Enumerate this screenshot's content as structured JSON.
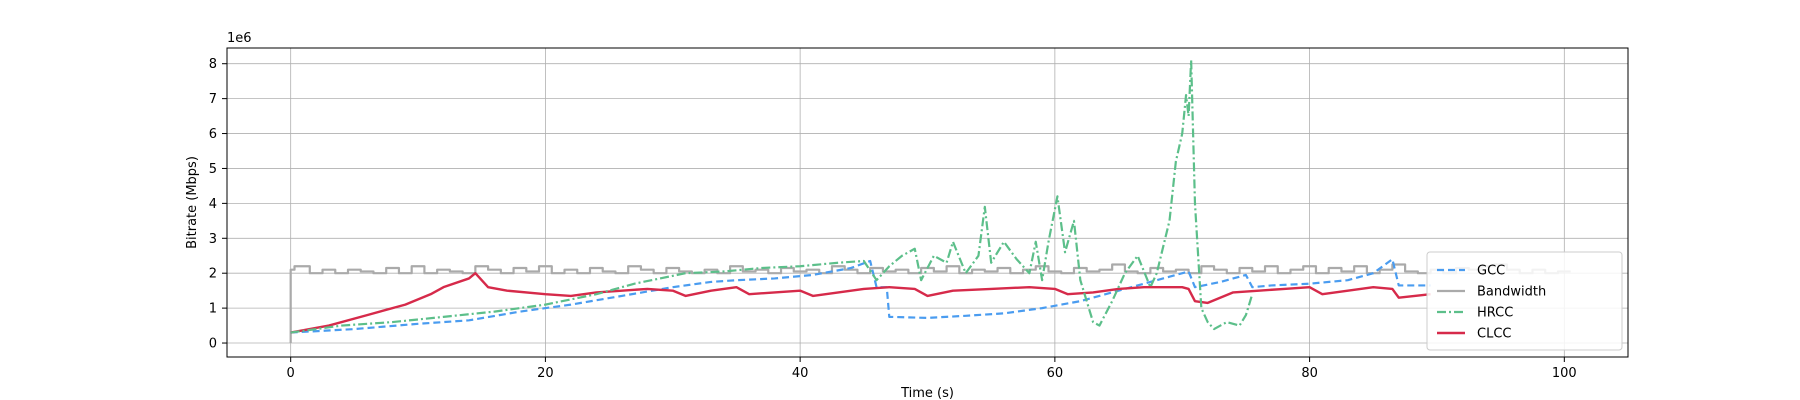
{
  "chart_data": {
    "type": "line",
    "xlabel": "Time (s)",
    "ylabel": "Bitrate (Mbps)",
    "y_multiplier_label": "1e6",
    "xlim": [
      -5,
      105
    ],
    "ylim": [
      -0.4,
      8.45
    ],
    "xticks": [
      0,
      20,
      40,
      60,
      80,
      100
    ],
    "yticks": [
      0,
      1,
      2,
      3,
      4,
      5,
      6,
      7,
      8
    ],
    "grid": true,
    "legend_position": "lower-right",
    "series": [
      {
        "name": "GCC",
        "color": "#4a9cf0",
        "style": "dashed",
        "points": [
          [
            0,
            0.3
          ],
          [
            5,
            0.4
          ],
          [
            10,
            0.55
          ],
          [
            14,
            0.65
          ],
          [
            18,
            0.9
          ],
          [
            22,
            1.1
          ],
          [
            26,
            1.35
          ],
          [
            30,
            1.6
          ],
          [
            33,
            1.75
          ],
          [
            35,
            1.8
          ],
          [
            38,
            1.85
          ],
          [
            41,
            1.95
          ],
          [
            44,
            2.15
          ],
          [
            45.5,
            2.35
          ],
          [
            46,
            1.6
          ],
          [
            46.8,
            1.6
          ],
          [
            47,
            0.75
          ],
          [
            50,
            0.72
          ],
          [
            53,
            0.78
          ],
          [
            56,
            0.85
          ],
          [
            59,
            1.0
          ],
          [
            62,
            1.2
          ],
          [
            65,
            1.5
          ],
          [
            67,
            1.7
          ],
          [
            69,
            1.9
          ],
          [
            70.5,
            2.05
          ],
          [
            71,
            1.6
          ],
          [
            73,
            1.75
          ],
          [
            75,
            1.95
          ],
          [
            75.5,
            1.6
          ],
          [
            77,
            1.65
          ],
          [
            80,
            1.7
          ],
          [
            83,
            1.8
          ],
          [
            85,
            2.0
          ],
          [
            86.5,
            2.4
          ],
          [
            87,
            1.65
          ],
          [
            89.5,
            1.65
          ]
        ]
      },
      {
        "name": "Bandwidth",
        "color": "#aaaaaa",
        "style": "step",
        "points": [
          [
            0,
            0
          ],
          [
            0,
            2.1
          ],
          [
            0.3,
            2.2
          ],
          [
            1.5,
            2.0
          ],
          [
            2.5,
            2.1
          ],
          [
            3.5,
            2.0
          ],
          [
            4.5,
            2.1
          ],
          [
            5.5,
            2.05
          ],
          [
            6.5,
            2.0
          ],
          [
            7.5,
            2.15
          ],
          [
            8.5,
            2.0
          ],
          [
            9.5,
            2.2
          ],
          [
            10.5,
            2.0
          ],
          [
            11.5,
            2.1
          ],
          [
            12.5,
            2.05
          ],
          [
            13.5,
            2.0
          ],
          [
            14.5,
            2.2
          ],
          [
            15.5,
            2.1
          ],
          [
            16.5,
            2.0
          ],
          [
            17.5,
            2.15
          ],
          [
            18.5,
            2.05
          ],
          [
            19.5,
            2.2
          ],
          [
            20.5,
            2.0
          ],
          [
            21.5,
            2.1
          ],
          [
            22.5,
            2.0
          ],
          [
            23.5,
            2.15
          ],
          [
            24.5,
            2.05
          ],
          [
            25.5,
            2.0
          ],
          [
            26.5,
            2.2
          ],
          [
            27.5,
            2.1
          ],
          [
            28.5,
            2.0
          ],
          [
            29.5,
            2.15
          ],
          [
            30.5,
            2.05
          ],
          [
            31.5,
            2.0
          ],
          [
            32.5,
            2.1
          ],
          [
            33.5,
            2.0
          ],
          [
            34.5,
            2.2
          ],
          [
            35.5,
            2.05
          ],
          [
            36.5,
            2.1
          ],
          [
            37.5,
            2.0
          ],
          [
            38.5,
            2.15
          ],
          [
            39.5,
            2.05
          ],
          [
            40.5,
            2.1
          ],
          [
            41.5,
            2.0
          ],
          [
            42.5,
            2.2
          ],
          [
            43.5,
            2.1
          ],
          [
            44.5,
            2.0
          ],
          [
            45.5,
            2.15
          ],
          [
            46.5,
            2.05
          ],
          [
            47.5,
            2.1
          ],
          [
            48.5,
            2.0
          ],
          [
            49.5,
            2.15
          ],
          [
            50.5,
            2.05
          ],
          [
            51.5,
            2.2
          ],
          [
            52.5,
            2.0
          ],
          [
            53.5,
            2.1
          ],
          [
            54.5,
            2.05
          ],
          [
            55.5,
            2.15
          ],
          [
            56.5,
            2.0
          ],
          [
            57.5,
            2.1
          ],
          [
            58.5,
            2.2
          ],
          [
            59.5,
            2.05
          ],
          [
            60.5,
            2.0
          ],
          [
            61.5,
            2.15
          ],
          [
            62.5,
            2.05
          ],
          [
            63.5,
            2.1
          ],
          [
            64.5,
            2.25
          ],
          [
            65.5,
            2.05
          ],
          [
            66.5,
            2.0
          ],
          [
            67.5,
            2.15
          ],
          [
            68.5,
            2.05
          ],
          [
            69.5,
            2.1
          ],
          [
            70.5,
            2.0
          ],
          [
            71.5,
            2.2
          ],
          [
            72.5,
            2.1
          ],
          [
            73.5,
            2.0
          ],
          [
            74.5,
            2.15
          ],
          [
            75.5,
            2.05
          ],
          [
            76.5,
            2.2
          ],
          [
            77.5,
            2.0
          ],
          [
            78.5,
            2.1
          ],
          [
            79.5,
            2.2
          ],
          [
            80.5,
            2.0
          ],
          [
            81.5,
            2.15
          ],
          [
            82.5,
            2.05
          ],
          [
            83.5,
            2.2
          ],
          [
            84.5,
            2.0
          ],
          [
            85.5,
            2.1
          ],
          [
            86.5,
            2.25
          ],
          [
            87.5,
            2.05
          ],
          [
            88.5,
            2.0
          ],
          [
            89.5,
            2.1
          ],
          [
            90.5,
            2.0
          ],
          [
            91.5,
            2.15
          ],
          [
            92.5,
            2.1
          ],
          [
            93.5,
            2.2
          ],
          [
            94.5,
            2.25
          ],
          [
            95.5,
            2.1
          ],
          [
            96.5,
            2.0
          ],
          [
            97.5,
            2.1
          ],
          [
            98.5,
            2.0
          ],
          [
            99.5,
            2.05
          ],
          [
            100.5,
            2.05
          ]
        ]
      },
      {
        "name": "HRCC",
        "color": "#5cbf8a",
        "style": "dashdot",
        "points": [
          [
            0,
            0.3
          ],
          [
            4,
            0.5
          ],
          [
            8,
            0.6
          ],
          [
            12,
            0.75
          ],
          [
            16,
            0.9
          ],
          [
            20,
            1.1
          ],
          [
            24,
            1.4
          ],
          [
            27,
            1.7
          ],
          [
            29,
            1.85
          ],
          [
            31,
            2.0
          ],
          [
            34,
            2.05
          ],
          [
            37,
            2.15
          ],
          [
            40,
            2.2
          ],
          [
            43,
            2.3
          ],
          [
            45,
            2.35
          ],
          [
            46,
            1.8
          ],
          [
            47,
            2.2
          ],
          [
            48,
            2.5
          ],
          [
            49,
            2.7
          ],
          [
            49.5,
            1.8
          ],
          [
            50.5,
            2.5
          ],
          [
            51.5,
            2.3
          ],
          [
            52,
            2.9
          ],
          [
            53,
            2.0
          ],
          [
            54,
            2.5
          ],
          [
            54.5,
            3.9
          ],
          [
            55,
            2.3
          ],
          [
            56,
            2.9
          ],
          [
            57,
            2.4
          ],
          [
            58,
            2.0
          ],
          [
            58.5,
            2.9
          ],
          [
            59,
            1.8
          ],
          [
            59.5,
            2.9
          ],
          [
            60.2,
            4.2
          ],
          [
            60.8,
            2.6
          ],
          [
            61.5,
            3.5
          ],
          [
            62,
            1.8
          ],
          [
            63,
            0.6
          ],
          [
            63.5,
            0.5
          ],
          [
            64.5,
            1.2
          ],
          [
            65.5,
            2.0
          ],
          [
            66.5,
            2.5
          ],
          [
            67.5,
            1.6
          ],
          [
            68,
            2.0
          ],
          [
            69,
            3.5
          ],
          [
            69.5,
            5.2
          ],
          [
            70,
            6.0
          ],
          [
            70.3,
            7.1
          ],
          [
            70.5,
            6.5
          ],
          [
            70.7,
            8.1
          ],
          [
            71,
            4.0
          ],
          [
            71.5,
            1.0
          ],
          [
            72,
            0.6
          ],
          [
            72.5,
            0.4
          ],
          [
            73.5,
            0.6
          ],
          [
            74.5,
            0.5
          ],
          [
            75,
            0.8
          ],
          [
            75.5,
            1.4
          ]
        ]
      },
      {
        "name": "CLCC",
        "color": "#d62a4a",
        "style": "solid",
        "points": [
          [
            0,
            0.3
          ],
          [
            3,
            0.5
          ],
          [
            6,
            0.8
          ],
          [
            9,
            1.1
          ],
          [
            11,
            1.4
          ],
          [
            12,
            1.6
          ],
          [
            14,
            1.85
          ],
          [
            14.5,
            2.0
          ],
          [
            15.5,
            1.6
          ],
          [
            17,
            1.5
          ],
          [
            20,
            1.4
          ],
          [
            22,
            1.35
          ],
          [
            24,
            1.45
          ],
          [
            26,
            1.5
          ],
          [
            28,
            1.55
          ],
          [
            30,
            1.5
          ],
          [
            31,
            1.35
          ],
          [
            33,
            1.5
          ],
          [
            35,
            1.6
          ],
          [
            36,
            1.4
          ],
          [
            38,
            1.45
          ],
          [
            40,
            1.5
          ],
          [
            41,
            1.35
          ],
          [
            43,
            1.45
          ],
          [
            45,
            1.55
          ],
          [
            47,
            1.6
          ],
          [
            49,
            1.55
          ],
          [
            50,
            1.35
          ],
          [
            52,
            1.5
          ],
          [
            55,
            1.55
          ],
          [
            58,
            1.6
          ],
          [
            60,
            1.55
          ],
          [
            61,
            1.4
          ],
          [
            63,
            1.45
          ],
          [
            65,
            1.55
          ],
          [
            67,
            1.6
          ],
          [
            70,
            1.6
          ],
          [
            70.5,
            1.55
          ],
          [
            71,
            1.2
          ],
          [
            72,
            1.15
          ],
          [
            74,
            1.45
          ],
          [
            76,
            1.5
          ],
          [
            78,
            1.55
          ],
          [
            80,
            1.6
          ],
          [
            81,
            1.4
          ],
          [
            83,
            1.5
          ],
          [
            85,
            1.6
          ],
          [
            86.5,
            1.55
          ],
          [
            87,
            1.3
          ],
          [
            89.5,
            1.4
          ]
        ]
      }
    ]
  }
}
